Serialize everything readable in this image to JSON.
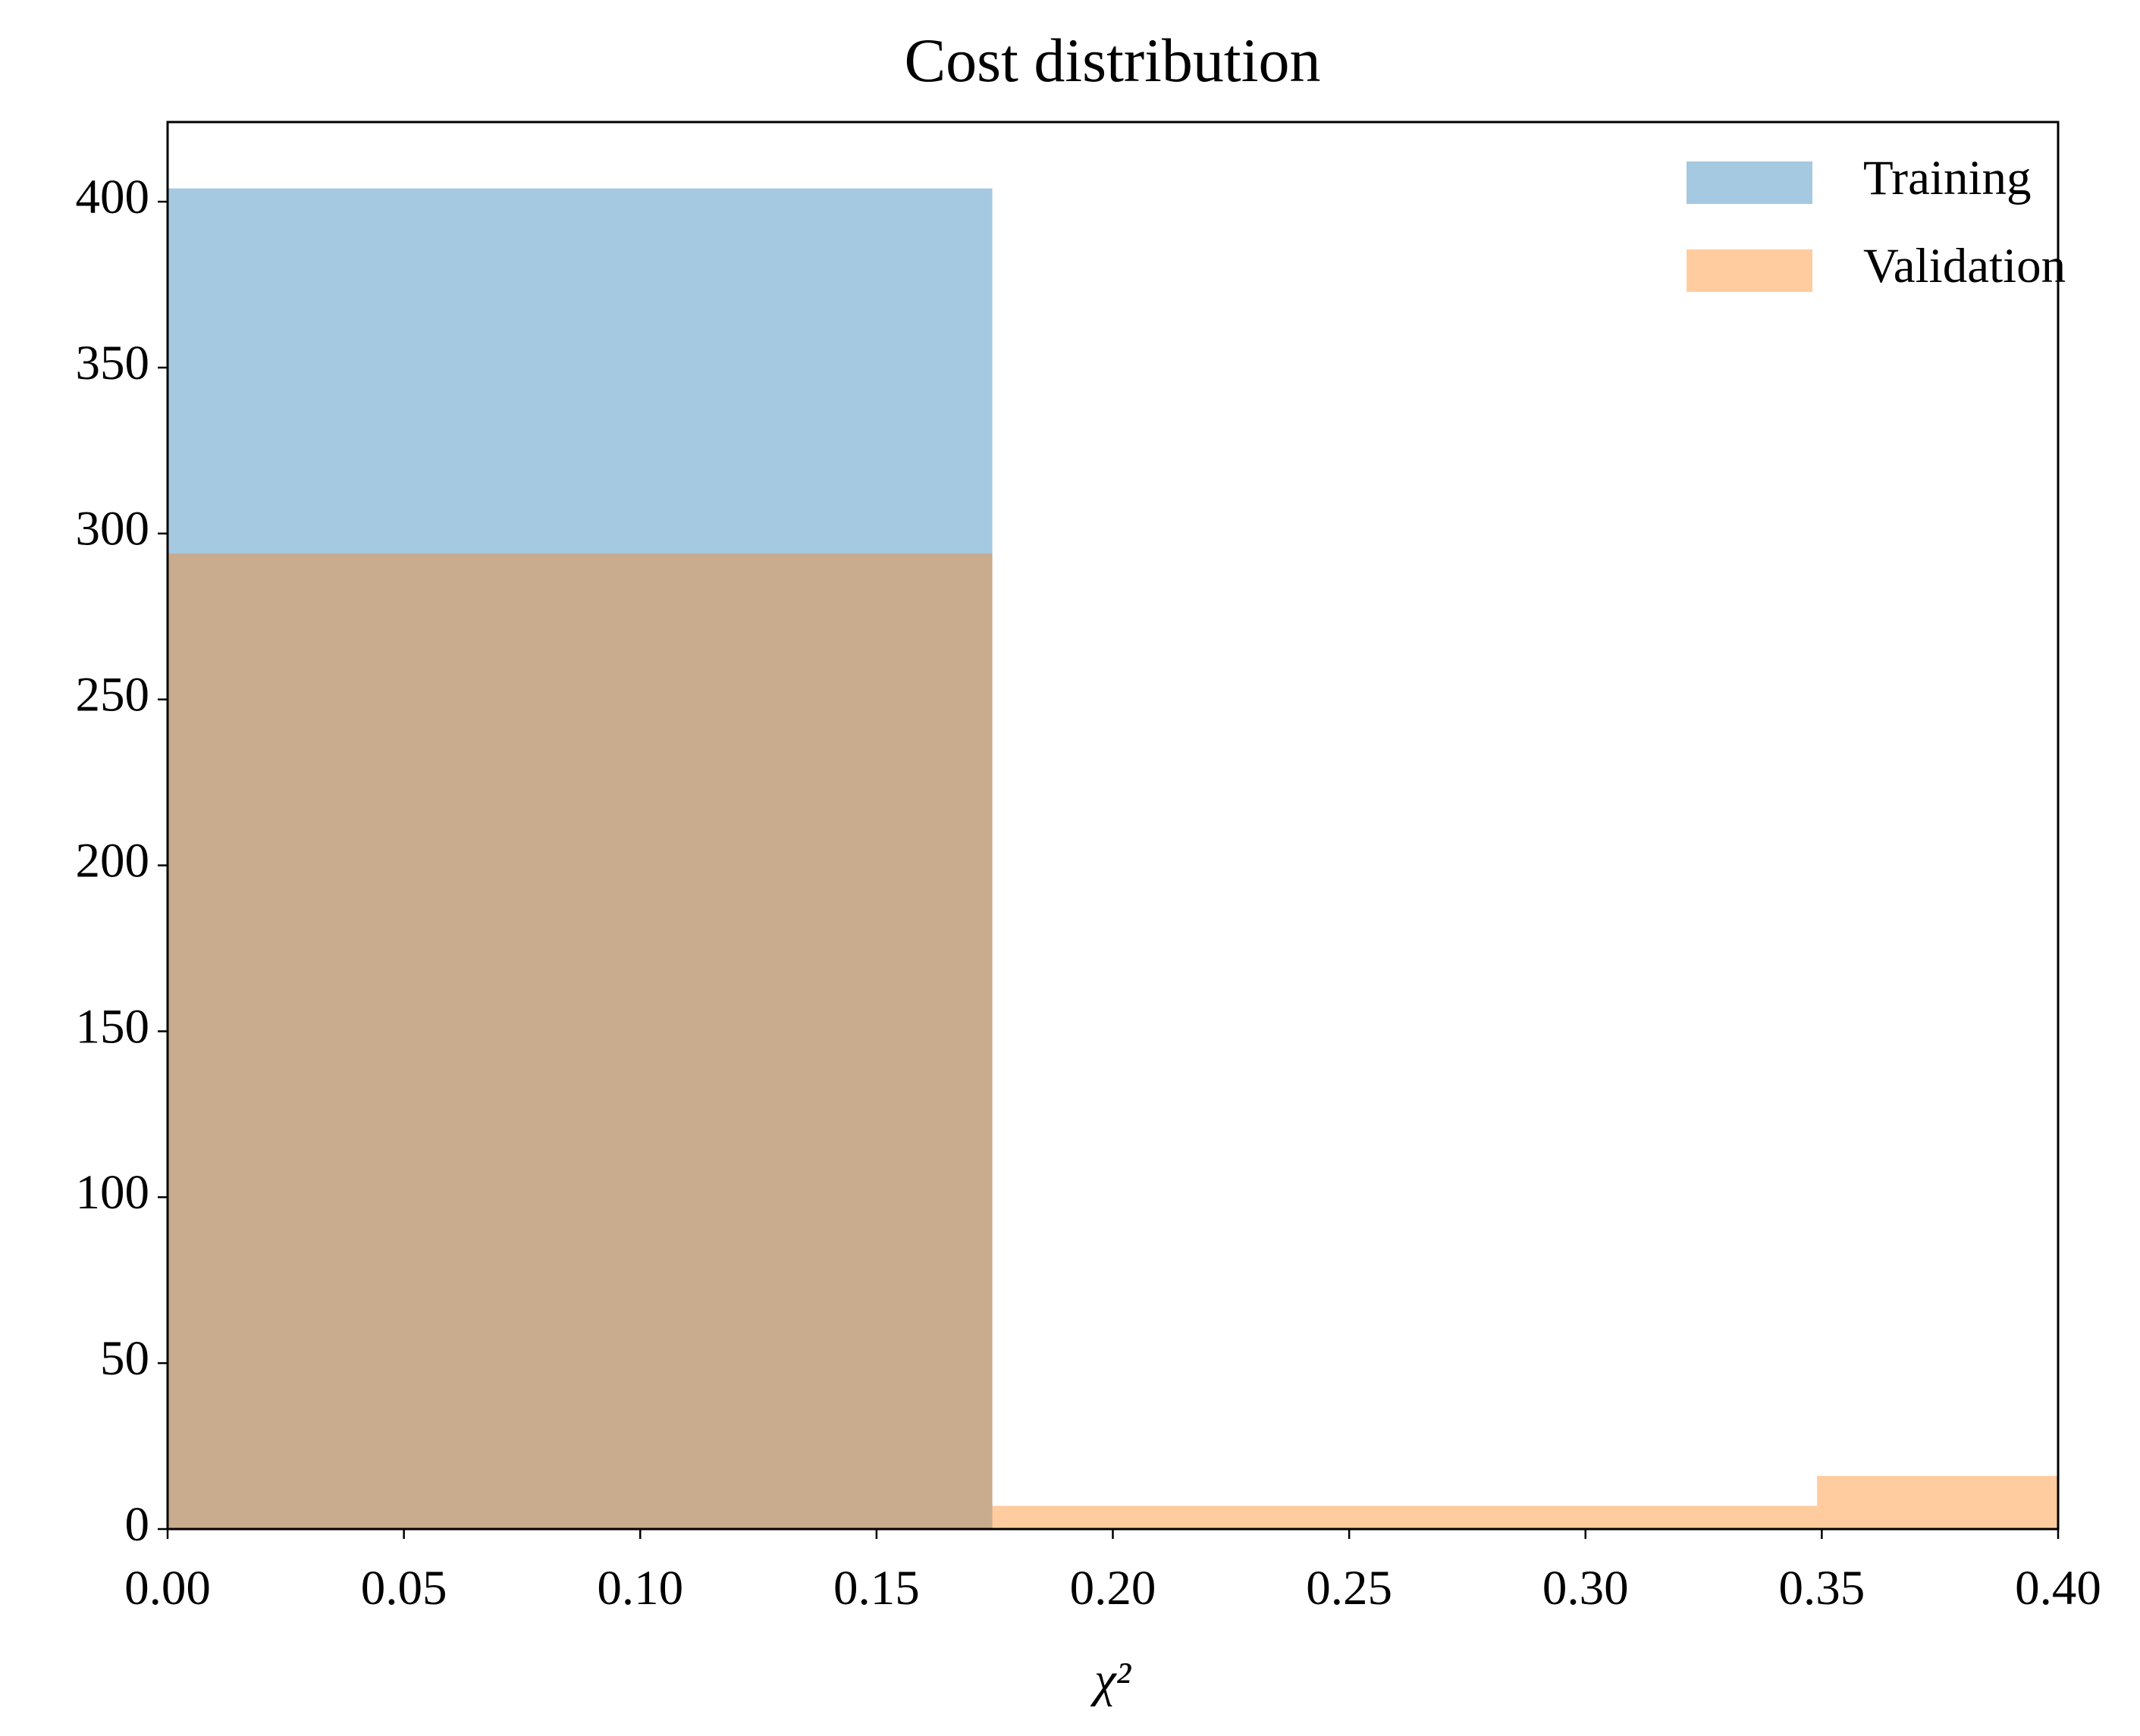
{
  "chart_data": {
    "type": "histogram",
    "title": "Cost distribution",
    "xlabel": "χ²",
    "series": [
      {
        "name": "Training",
        "color": "#1f77b4",
        "bins": [
          0,
          0.1745
        ],
        "values": [
          404
        ]
      },
      {
        "name": "Validation",
        "color": "#ff7f0e",
        "bins": [
          0,
          0.1745,
          0.349,
          0.5235
        ],
        "values": [
          294,
          7,
          16
        ]
      }
    ],
    "opacity": 0.4,
    "xlim": [
      0,
      0.4
    ],
    "xticks": [
      {
        "value": 0,
        "label": "0.00"
      },
      {
        "value": 0.05,
        "label": "0.05"
      },
      {
        "value": 0.1,
        "label": "0.10"
      },
      {
        "value": 0.15,
        "label": "0.15"
      },
      {
        "value": 0.2,
        "label": "0.20"
      },
      {
        "value": 0.25,
        "label": "0.25"
      },
      {
        "value": 0.3,
        "label": "0.30"
      },
      {
        "value": 0.35,
        "label": "0.35"
      },
      {
        "value": 0.4,
        "label": "0.40"
      }
    ],
    "ylim": [
      0,
      424
    ],
    "yticks": [
      0,
      50,
      100,
      150,
      200,
      250,
      300,
      350,
      400
    ],
    "legend": "upper right"
  }
}
